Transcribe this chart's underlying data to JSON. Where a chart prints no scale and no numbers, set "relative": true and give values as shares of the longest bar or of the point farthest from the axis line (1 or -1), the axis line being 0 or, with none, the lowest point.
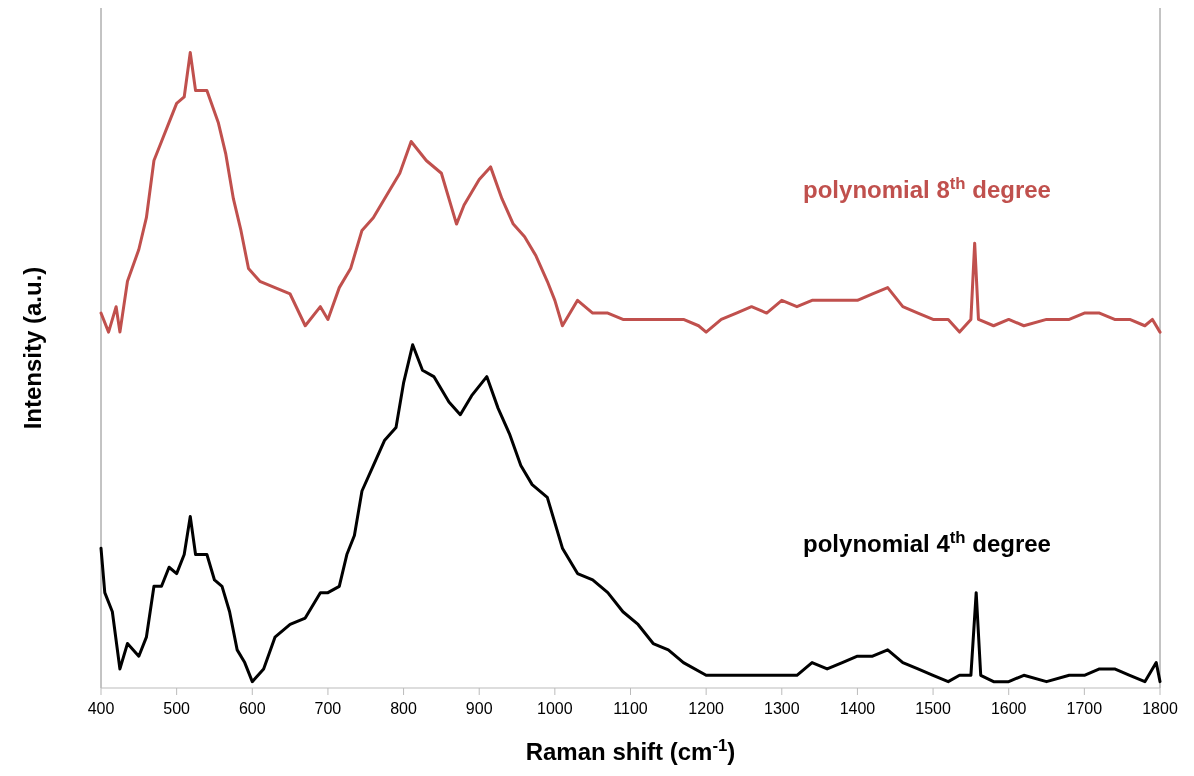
{
  "chart_data": {
    "type": "line",
    "relative": true,
    "xlabel": "Raman shift (cm$^{-1}$)",
    "ylabel": "Intensity  (a.u.)",
    "xlim": [
      400,
      1800
    ],
    "xticks": [
      400,
      500,
      600,
      700,
      800,
      900,
      1000,
      1100,
      1200,
      1300,
      1400,
      1500,
      1600,
      1700,
      1800
    ],
    "line_style": "solid",
    "series": [
      {
        "name": "polynomial 8$^{th}$ degree",
        "color": "#c0504d",
        "x": [
          400,
          410,
          420,
          425,
          435,
          450,
          460,
          470,
          480,
          490,
          500,
          510,
          518,
          525,
          540,
          555,
          565,
          575,
          585,
          595,
          610,
          630,
          650,
          670,
          690,
          700,
          715,
          730,
          745,
          760,
          780,
          795,
          810,
          830,
          850,
          870,
          880,
          900,
          915,
          930,
          945,
          960,
          975,
          990,
          1000,
          1010,
          1030,
          1050,
          1070,
          1090,
          1110,
          1130,
          1150,
          1170,
          1190,
          1200,
          1220,
          1240,
          1260,
          1280,
          1300,
          1320,
          1340,
          1360,
          1380,
          1400,
          1420,
          1440,
          1460,
          1480,
          1500,
          1520,
          1535,
          1550,
          1555,
          1560,
          1580,
          1600,
          1620,
          1650,
          1680,
          1700,
          1720,
          1740,
          1760,
          1780,
          1790,
          1800
        ],
        "values": [
          0.59,
          0.56,
          0.6,
          0.56,
          0.64,
          0.69,
          0.74,
          0.83,
          0.86,
          0.89,
          0.92,
          0.93,
          1.0,
          0.94,
          0.94,
          0.89,
          0.84,
          0.77,
          0.72,
          0.66,
          0.64,
          0.63,
          0.62,
          0.57,
          0.6,
          0.58,
          0.63,
          0.66,
          0.72,
          0.74,
          0.78,
          0.81,
          0.86,
          0.83,
          0.81,
          0.73,
          0.76,
          0.8,
          0.82,
          0.77,
          0.73,
          0.71,
          0.68,
          0.64,
          0.61,
          0.57,
          0.61,
          0.59,
          0.59,
          0.58,
          0.58,
          0.58,
          0.58,
          0.58,
          0.57,
          0.56,
          0.58,
          0.59,
          0.6,
          0.59,
          0.61,
          0.6,
          0.61,
          0.61,
          0.61,
          0.61,
          0.62,
          0.63,
          0.6,
          0.59,
          0.58,
          0.58,
          0.56,
          0.58,
          0.7,
          0.58,
          0.57,
          0.58,
          0.57,
          0.58,
          0.58,
          0.59,
          0.59,
          0.58,
          0.58,
          0.57,
          0.58,
          0.56
        ]
      },
      {
        "name": "polynomial 4$^{th}$ degree",
        "color": "#000000",
        "x": [
          400,
          405,
          415,
          425,
          435,
          450,
          460,
          470,
          480,
          490,
          500,
          510,
          518,
          525,
          540,
          550,
          560,
          570,
          580,
          590,
          600,
          615,
          630,
          650,
          670,
          690,
          700,
          715,
          725,
          735,
          745,
          760,
          775,
          790,
          800,
          812,
          825,
          840,
          860,
          875,
          890,
          910,
          925,
          940,
          955,
          970,
          990,
          1010,
          1030,
          1050,
          1070,
          1090,
          1110,
          1130,
          1150,
          1170,
          1200,
          1230,
          1260,
          1280,
          1300,
          1320,
          1340,
          1360,
          1380,
          1400,
          1420,
          1440,
          1460,
          1480,
          1500,
          1520,
          1535,
          1550,
          1557,
          1563,
          1580,
          1600,
          1620,
          1650,
          1680,
          1700,
          1720,
          1740,
          1760,
          1780,
          1795,
          1800
        ],
        "values": [
          0.22,
          0.15,
          0.12,
          0.03,
          0.07,
          0.05,
          0.08,
          0.16,
          0.16,
          0.19,
          0.18,
          0.21,
          0.27,
          0.21,
          0.21,
          0.17,
          0.16,
          0.12,
          0.06,
          0.04,
          0.01,
          0.03,
          0.08,
          0.1,
          0.11,
          0.15,
          0.15,
          0.16,
          0.21,
          0.24,
          0.31,
          0.35,
          0.39,
          0.41,
          0.48,
          0.54,
          0.5,
          0.49,
          0.45,
          0.43,
          0.46,
          0.49,
          0.44,
          0.4,
          0.35,
          0.32,
          0.3,
          0.22,
          0.18,
          0.17,
          0.15,
          0.12,
          0.1,
          0.07,
          0.06,
          0.04,
          0.02,
          0.02,
          0.02,
          0.02,
          0.02,
          0.02,
          0.04,
          0.03,
          0.04,
          0.05,
          0.05,
          0.06,
          0.04,
          0.03,
          0.02,
          0.01,
          0.02,
          0.02,
          0.15,
          0.02,
          0.01,
          0.01,
          0.02,
          0.01,
          0.02,
          0.02,
          0.03,
          0.03,
          0.02,
          0.01,
          0.04,
          0.01
        ]
      }
    ]
  }
}
